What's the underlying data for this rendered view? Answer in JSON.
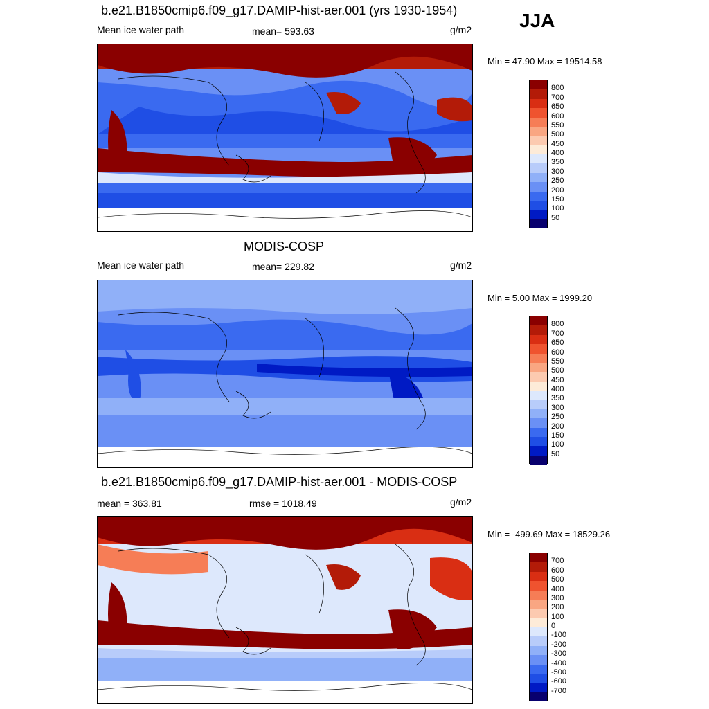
{
  "season": "JJA",
  "units": "g/m2",
  "palette": {
    "abs": [
      "#08006e",
      "#001ac4",
      "#1f4ee5",
      "#3a6af0",
      "#6a90f5",
      "#90b0f8",
      "#b8ccfa",
      "#dde8fc",
      "#fdebd8",
      "#fccab0",
      "#f9a682",
      "#f67d56",
      "#ef532f",
      "#d92e13",
      "#b31b08",
      "#8a0000"
    ],
    "diff": [
      "#08006e",
      "#001ac4",
      "#1f4ee5",
      "#3a6af0",
      "#6a90f5",
      "#90b0f8",
      "#b8ccfa",
      "#dde8fc",
      "#fdebd8",
      "#fccab0",
      "#f9a682",
      "#f67d56",
      "#ef532f",
      "#d92e13",
      "#b31b08",
      "#8a0000"
    ]
  },
  "panels": [
    {
      "title": "b.e21.B1850cmip6.f09_g17.DAMIP-hist-aer.001 (yrs 1930-1954)",
      "left_label": "Mean ice water path",
      "center_label": "mean= 593.63",
      "right_label": "g/m2",
      "minmax": "Min =  47.90 Max = 19514.58",
      "colorbar_levels": [
        "800",
        "700",
        "650",
        "600",
        "550",
        "500",
        "450",
        "400",
        "350",
        "300",
        "250",
        "200",
        "150",
        "100",
        "50"
      ]
    },
    {
      "title": "MODIS-COSP",
      "left_label": "Mean ice water path",
      "center_label": "mean= 229.82",
      "right_label": "g/m2",
      "minmax": "Min =   5.00 Max = 1999.20",
      "colorbar_levels": [
        "800",
        "700",
        "650",
        "600",
        "550",
        "500",
        "450",
        "400",
        "350",
        "300",
        "250",
        "200",
        "150",
        "100",
        "50"
      ]
    },
    {
      "title": "b.e21.B1850cmip6.f09_g17.DAMIP-hist-aer.001 - MODIS-COSP",
      "left_label": "mean = 363.81",
      "center_label": "rmse = 1018.49",
      "right_label": "g/m2",
      "minmax": "Min = -499.69 Max = 18529.26",
      "colorbar_levels": [
        "700",
        "600",
        "500",
        "400",
        "300",
        "200",
        "100",
        "0",
        "-100",
        "-200",
        "-300",
        "-400",
        "-500",
        "-600",
        "-700"
      ]
    }
  ]
}
